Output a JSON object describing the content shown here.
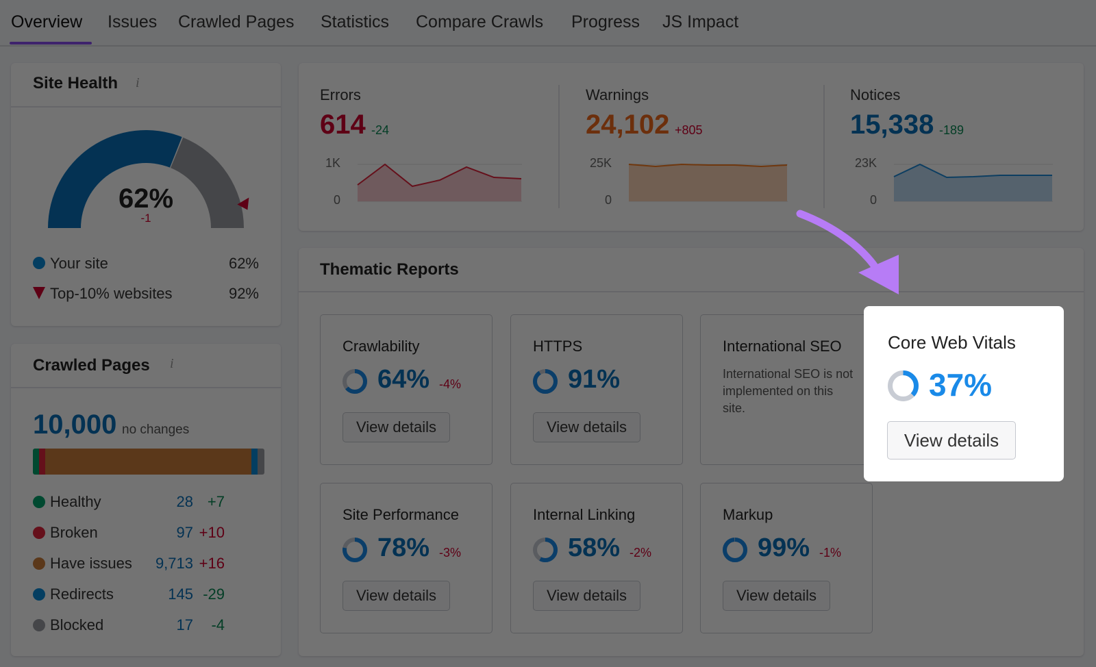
{
  "tabs": [
    "Overview",
    "Issues",
    "Crawled Pages",
    "Statistics",
    "Compare Crawls",
    "Progress",
    "JS Impact"
  ],
  "site_health": {
    "title": "Site Health",
    "score": "62%",
    "change": "-1",
    "legend": [
      {
        "label": "Your site",
        "value": "62%"
      },
      {
        "label": "Top-10% websites",
        "value": "92%"
      }
    ]
  },
  "issues_summary": [
    {
      "label": "Errors",
      "value": "614",
      "change": "-24",
      "axis_max": "1K",
      "axis_min": "0"
    },
    {
      "label": "Warnings",
      "value": "24,102",
      "change": "+805",
      "axis_max": "25K",
      "axis_min": "0"
    },
    {
      "label": "Notices",
      "value": "15,338",
      "change": "-189",
      "axis_max": "23K",
      "axis_min": "0"
    }
  ],
  "crawled_pages": {
    "title": "Crawled Pages",
    "total": "10,000",
    "note": "no changes",
    "rows": [
      {
        "label": "Healthy",
        "value": "28",
        "change": "+7"
      },
      {
        "label": "Broken",
        "value": "97",
        "change": "+10"
      },
      {
        "label": "Have issues",
        "value": "9,713",
        "change": "+16"
      },
      {
        "label": "Redirects",
        "value": "145",
        "change": "-29"
      },
      {
        "label": "Blocked",
        "value": "17",
        "change": "-4"
      }
    ]
  },
  "thematic_reports": {
    "title": "Thematic Reports",
    "cards": [
      {
        "title": "Crawlability",
        "score": "64%",
        "change": "-4%",
        "button": "View details"
      },
      {
        "title": "HTTPS",
        "score": "91%",
        "button": "View details"
      },
      {
        "title": "International SEO",
        "note": "International SEO is not implemented on this site."
      },
      {
        "title": "Core Web Vitals",
        "score": "37%",
        "button": "View details"
      },
      {
        "title": "Site Performance",
        "score": "78%",
        "change": "-3%",
        "button": "View details"
      },
      {
        "title": "Internal Linking",
        "score": "58%",
        "change": "-2%",
        "button": "View details"
      },
      {
        "title": "Markup",
        "score": "99%",
        "change": "-1%",
        "button": "View details"
      }
    ]
  }
}
